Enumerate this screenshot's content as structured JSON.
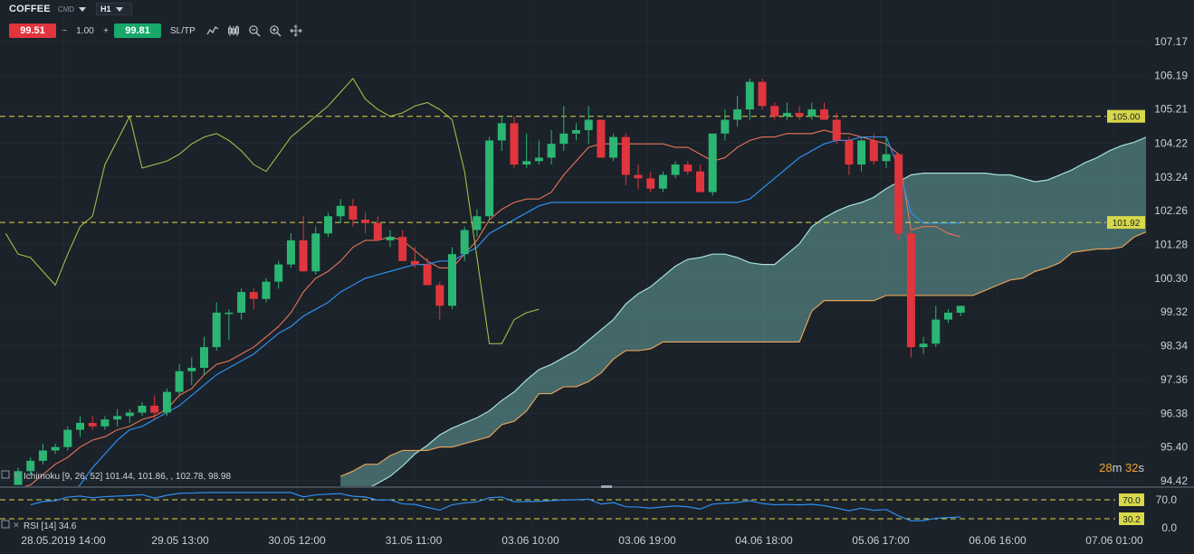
{
  "header": {
    "symbol": "COFFEE",
    "symbol_type": "CMD",
    "timeframe": "H1",
    "sell_price": "99.51",
    "quantity_minus": "−",
    "quantity": "1.00",
    "quantity_plus": "+",
    "buy_price": "99.81",
    "sltp_label": "SL/TP"
  },
  "icons": [
    "line-chart-icon",
    "candles-icon",
    "zoom-out-icon",
    "zoom-in-icon",
    "crosshair-icon"
  ],
  "main_chart": {
    "price_ticks": [
      "107.17",
      "106.19",
      "105.21",
      "104.22",
      "103.24",
      "102.26",
      "101.28",
      "100.30",
      "99.32",
      "98.34",
      "97.36",
      "96.38",
      "95.40",
      "94.42"
    ],
    "price_levels": [
      {
        "value": "105.00",
        "color": "#d8d84a"
      },
      {
        "value": "101.92",
        "color": "#d8d84a"
      }
    ],
    "indicator_legend": "Ichimoku [9, 26, 52] 101.44, 101.86, , 102.78, 98.98",
    "timer_minutes": "28",
    "timer_m": "m",
    "timer_seconds": "32",
    "timer_s": "s"
  },
  "chart_data": {
    "type": "candlestick",
    "title": "",
    "ylim": [
      94.42,
      107.17
    ],
    "x_labels": [
      "28.05.2019 14:00",
      "29.05 13:00",
      "30.05 12:00",
      "31.05 11:00",
      "03.06 10:00",
      "03.06 19:00",
      "04.06 18:00",
      "05.06 17:00",
      "06.06 16:00",
      "07.06 01:00"
    ],
    "candles": [
      [
        94.3,
        94.8,
        94.3,
        94.7
      ],
      [
        94.7,
        95.1,
        94.6,
        95.0
      ],
      [
        95.0,
        95.5,
        94.9,
        95.3
      ],
      [
        95.3,
        95.5,
        95.2,
        95.4
      ],
      [
        95.4,
        96.0,
        95.3,
        95.9
      ],
      [
        95.9,
        96.3,
        95.7,
        96.1
      ],
      [
        96.1,
        96.3,
        95.9,
        96.0
      ],
      [
        96.0,
        96.3,
        95.9,
        96.2
      ],
      [
        96.2,
        96.5,
        96.0,
        96.3
      ],
      [
        96.3,
        96.5,
        96.1,
        96.4
      ],
      [
        96.4,
        96.7,
        96.3,
        96.6
      ],
      [
        96.6,
        96.9,
        96.2,
        96.4
      ],
      [
        96.4,
        97.1,
        96.3,
        97.0
      ],
      [
        97.0,
        97.8,
        96.9,
        97.6
      ],
      [
        97.6,
        98.0,
        97.2,
        97.7
      ],
      [
        97.7,
        98.6,
        97.5,
        98.3
      ],
      [
        98.3,
        99.6,
        98.2,
        99.3
      ],
      [
        99.3,
        99.4,
        98.5,
        99.3
      ],
      [
        99.3,
        100.0,
        99.1,
        99.9
      ],
      [
        99.9,
        100.0,
        99.4,
        99.7
      ],
      [
        99.7,
        100.3,
        99.6,
        100.2
      ],
      [
        100.2,
        100.8,
        100.0,
        100.7
      ],
      [
        100.7,
        101.6,
        100.6,
        101.4
      ],
      [
        101.4,
        102.1,
        100.5,
        100.5
      ],
      [
        100.5,
        101.8,
        100.4,
        101.6
      ],
      [
        101.6,
        102.2,
        101.5,
        102.1
      ],
      [
        102.1,
        102.6,
        101.9,
        102.4
      ],
      [
        102.4,
        102.6,
        101.8,
        102.0
      ],
      [
        102.0,
        102.2,
        101.6,
        101.9
      ],
      [
        101.9,
        102.1,
        101.5,
        101.4
      ],
      [
        101.4,
        101.7,
        101.2,
        101.5
      ],
      [
        101.5,
        101.7,
        100.9,
        100.8
      ],
      [
        100.8,
        101.2,
        100.6,
        100.7
      ],
      [
        100.7,
        100.9,
        100.1,
        100.1
      ],
      [
        100.1,
        100.2,
        99.1,
        99.5
      ],
      [
        99.5,
        101.2,
        99.4,
        101.0
      ],
      [
        101.0,
        101.8,
        100.8,
        101.7
      ],
      [
        101.7,
        102.3,
        101.5,
        102.1
      ],
      [
        102.1,
        104.4,
        102.0,
        104.3
      ],
      [
        104.3,
        105.0,
        104.0,
        104.8
      ],
      [
        104.8,
        105.0,
        103.5,
        103.6
      ],
      [
        103.6,
        104.5,
        103.5,
        103.7
      ],
      [
        103.7,
        104.3,
        103.6,
        103.8
      ],
      [
        103.8,
        104.6,
        103.6,
        104.2
      ],
      [
        104.2,
        105.3,
        104.0,
        104.5
      ],
      [
        104.5,
        104.8,
        104.3,
        104.6
      ],
      [
        104.6,
        105.3,
        104.2,
        104.9
      ],
      [
        104.9,
        104.9,
        103.8,
        103.8
      ],
      [
        103.8,
        104.5,
        103.7,
        104.4
      ],
      [
        104.4,
        104.5,
        103.0,
        103.3
      ],
      [
        103.3,
        103.6,
        102.9,
        103.2
      ],
      [
        103.2,
        103.4,
        102.8,
        102.9
      ],
      [
        102.9,
        103.4,
        102.8,
        103.3
      ],
      [
        103.3,
        103.7,
        103.2,
        103.6
      ],
      [
        103.6,
        103.7,
        103.3,
        103.4
      ],
      [
        103.4,
        103.6,
        102.9,
        102.8
      ],
      [
        102.8,
        104.5,
        102.7,
        104.5
      ],
      [
        104.5,
        105.2,
        104.3,
        104.9
      ],
      [
        104.9,
        105.6,
        104.7,
        105.2
      ],
      [
        105.2,
        106.1,
        104.9,
        106.0
      ],
      [
        106.0,
        106.1,
        105.2,
        105.3
      ],
      [
        105.3,
        105.4,
        104.9,
        105.0
      ],
      [
        105.0,
        105.4,
        104.9,
        105.1
      ],
      [
        105.1,
        105.3,
        104.9,
        105.0
      ],
      [
        105.0,
        105.4,
        104.9,
        105.2
      ],
      [
        105.2,
        105.4,
        104.9,
        104.9
      ],
      [
        104.9,
        105.1,
        104.2,
        104.3
      ],
      [
        104.3,
        104.4,
        103.3,
        103.6
      ],
      [
        103.6,
        104.4,
        103.4,
        104.3
      ],
      [
        104.3,
        104.5,
        103.6,
        103.7
      ],
      [
        103.7,
        104.4,
        103.5,
        103.9
      ],
      [
        103.9,
        103.9,
        101.4,
        101.6
      ],
      [
        101.6,
        101.7,
        98.0,
        98.3
      ],
      [
        98.3,
        98.6,
        98.1,
        98.4
      ],
      [
        98.4,
        99.5,
        98.3,
        99.1
      ],
      [
        99.1,
        99.4,
        99.0,
        99.3
      ],
      [
        99.3,
        99.5,
        99.2,
        99.5
      ]
    ],
    "ichimoku": {
      "tenkan": [
        94.2,
        94.3,
        94.6,
        94.9,
        95.1,
        95.4,
        95.6,
        95.7,
        95.9,
        96.0,
        96.2,
        96.3,
        96.5,
        96.9,
        97.1,
        97.5,
        97.8,
        97.9,
        98.1,
        98.3,
        98.6,
        98.9,
        99.3,
        99.9,
        100.3,
        100.5,
        100.8,
        101.2,
        101.4,
        101.4,
        101.5,
        101.4,
        101.1,
        100.8,
        100.6,
        100.6,
        101.0,
        101.4,
        102.0,
        102.3,
        102.5,
        102.6,
        102.6,
        102.8,
        103.3,
        103.7,
        104.1,
        104.2,
        104.2,
        104.2,
        104.2,
        104.2,
        104.2,
        104.1,
        104.1,
        103.9,
        103.7,
        103.8,
        104.1,
        104.3,
        104.4,
        104.4,
        104.5,
        104.5,
        104.5,
        104.6,
        104.5,
        104.5,
        104.4,
        104.3,
        104.2,
        103.9,
        101.7,
        101.8,
        101.8,
        101.6,
        101.5
      ],
      "kijun": [
        93.6,
        93.6,
        93.7,
        93.8,
        94.0,
        94.3,
        94.8,
        95.2,
        95.6,
        95.9,
        96.0,
        96.2,
        96.4,
        96.6,
        96.9,
        97.2,
        97.5,
        97.7,
        97.9,
        98.1,
        98.4,
        98.7,
        98.9,
        99.2,
        99.4,
        99.6,
        99.9,
        100.1,
        100.3,
        100.4,
        100.5,
        100.6,
        100.7,
        100.7,
        100.8,
        100.8,
        101.0,
        101.2,
        101.6,
        101.8,
        102.0,
        102.2,
        102.4,
        102.5,
        102.5,
        102.5,
        102.5,
        102.5,
        102.5,
        102.5,
        102.5,
        102.5,
        102.5,
        102.5,
        102.5,
        102.5,
        102.5,
        102.5,
        102.5,
        102.6,
        102.9,
        103.2,
        103.5,
        103.8,
        104.0,
        104.2,
        104.3,
        104.3,
        104.4,
        104.4,
        104.4,
        103.5,
        102.2,
        101.9,
        101.9,
        101.9,
        101.9
      ],
      "chikou": [
        101.6,
        101.0,
        100.9,
        100.5,
        100.1,
        101.0,
        101.8,
        102.1,
        103.6,
        104.3,
        105.0,
        103.5,
        103.6,
        103.7,
        103.9,
        104.2,
        104.4,
        104.5,
        104.3,
        104.0,
        103.6,
        103.4,
        103.9,
        104.4,
        104.7,
        105.0,
        105.3,
        105.7,
        106.1,
        105.5,
        105.2,
        105.0,
        105.1,
        105.3,
        105.4,
        105.2,
        104.9,
        103.4,
        100.9,
        98.4,
        98.4,
        99.1,
        99.3,
        99.4
      ]
    },
    "rsi": {
      "legend": "RSI [14] 34.6",
      "ticks": [
        "70.0",
        "0.0"
      ],
      "levels": [
        {
          "value": "70.0",
          "color": "#d8d84a"
        },
        {
          "value": "30.2",
          "color": "#d8d84a"
        }
      ]
    }
  }
}
